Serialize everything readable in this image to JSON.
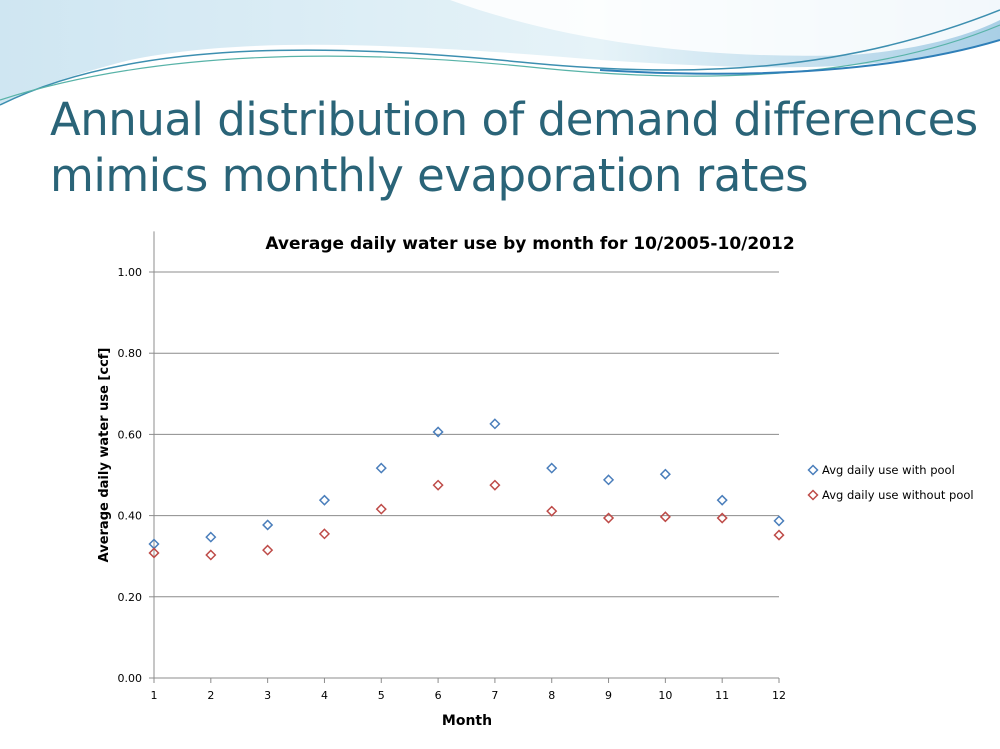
{
  "slide": {
    "title_line1": "Annual distribution of demand differences",
    "title_line2": "mimics monthly evaporation rates"
  },
  "chart_data": {
    "type": "scatter",
    "title": "Average daily water use by month for 10/2005-10/2012",
    "xlabel": "Month",
    "ylabel": "Average daily water use [ccf]",
    "x": [
      1,
      2,
      3,
      4,
      5,
      6,
      7,
      8,
      9,
      10,
      11,
      12
    ],
    "xticks": [
      "1",
      "2",
      "3",
      "4",
      "5",
      "6",
      "7",
      "8",
      "9",
      "10",
      "11",
      "12"
    ],
    "yticks": [
      "0.00",
      "0.20",
      "0.40",
      "0.60",
      "0.80",
      "1.00"
    ],
    "ylim": [
      0,
      1.1
    ],
    "xlim": [
      1,
      12
    ],
    "grid": "horizontal",
    "legend": "right",
    "marker": "diamond",
    "series": [
      {
        "name": "Avg daily use with pool",
        "color": "#4a7ebb",
        "values": [
          0.33,
          0.347,
          0.377,
          0.438,
          0.517,
          0.606,
          0.626,
          0.517,
          0.488,
          0.502,
          0.438,
          0.387
        ]
      },
      {
        "name": "Avg daily use without pool",
        "color": "#be4b48",
        "values": [
          0.308,
          0.303,
          0.315,
          0.355,
          0.416,
          0.475,
          0.475,
          0.411,
          0.394,
          0.397,
          0.394,
          0.352
        ]
      }
    ]
  }
}
